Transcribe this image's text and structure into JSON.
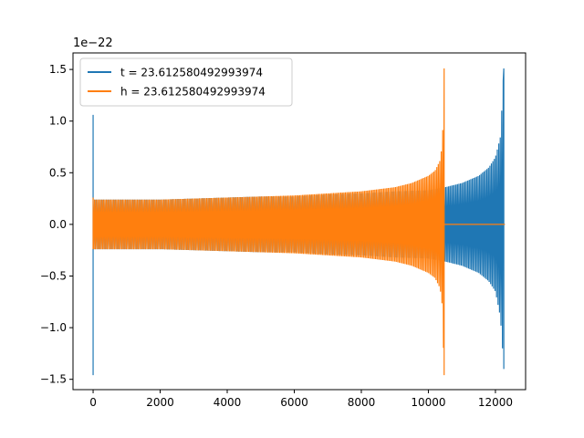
{
  "chart_data": {
    "type": "line",
    "title": "",
    "xlabel": "",
    "ylabel": "",
    "y_offset_label": "1e−22",
    "xlim": [
      -600,
      12900
    ],
    "ylim": [
      -1.6,
      1.66
    ],
    "x_ticks": [
      0,
      2000,
      4000,
      6000,
      8000,
      10000,
      12000
    ],
    "x_tick_labels": [
      "0",
      "2000",
      "4000",
      "6000",
      "8000",
      "10000",
      "12000"
    ],
    "y_ticks": [
      -1.5,
      -1.0,
      -0.5,
      0.0,
      0.5,
      1.0,
      1.5
    ],
    "y_tick_labels": [
      "−1.5",
      "−1.0",
      "−0.5",
      "0.0",
      "0.5",
      "1.0",
      "1.5"
    ],
    "grid": false,
    "legend_position": "top-left",
    "series": [
      {
        "name": "t = 23.612580492993974",
        "color": "#1f77b4",
        "x": [
          0,
          0,
          0,
          60,
          500,
          1000,
          2000,
          3000,
          4000,
          5000,
          6000,
          7000,
          8000,
          9000,
          10000,
          10500,
          11000,
          11500,
          11800,
          12000,
          12150,
          12250,
          12280,
          12280
        ],
        "y_upper": [
          1.06,
          1.06,
          0.24,
          0.24,
          0.24,
          0.24,
          0.24,
          0.25,
          0.26,
          0.27,
          0.27,
          0.29,
          0.3,
          0.32,
          0.33,
          0.36,
          0.4,
          0.47,
          0.55,
          0.65,
          0.85,
          1.51,
          0.0,
          0.0
        ],
        "y_lower": [
          -1.46,
          -1.46,
          -0.24,
          -0.24,
          -0.24,
          -0.24,
          -0.24,
          -0.25,
          -0.26,
          -0.27,
          -0.27,
          -0.29,
          -0.3,
          -0.32,
          -0.33,
          -0.36,
          -0.4,
          -0.47,
          -0.55,
          -0.65,
          -0.9,
          -1.4,
          0.0,
          0.0
        ]
      },
      {
        "name": "h = 23.612580492993974",
        "color": "#ff7f0e",
        "x": [
          0,
          0,
          0,
          60,
          500,
          1000,
          2000,
          3000,
          4000,
          5000,
          6000,
          7000,
          8000,
          9000,
          9500,
          10000,
          10200,
          10350,
          10420,
          10470,
          10480,
          12280
        ],
        "y_upper": [
          0.26,
          0.26,
          0.24,
          0.24,
          0.24,
          0.24,
          0.24,
          0.25,
          0.26,
          0.27,
          0.28,
          0.3,
          0.32,
          0.36,
          0.4,
          0.47,
          0.52,
          0.62,
          0.8,
          1.51,
          0.0,
          0.0
        ],
        "y_lower": [
          -0.24,
          -0.24,
          -0.24,
          -0.24,
          -0.24,
          -0.24,
          -0.24,
          -0.25,
          -0.26,
          -0.27,
          -0.28,
          -0.3,
          -0.32,
          -0.36,
          -0.4,
          -0.47,
          -0.52,
          -0.62,
          -0.8,
          -1.46,
          0.0,
          0.0
        ]
      }
    ]
  }
}
